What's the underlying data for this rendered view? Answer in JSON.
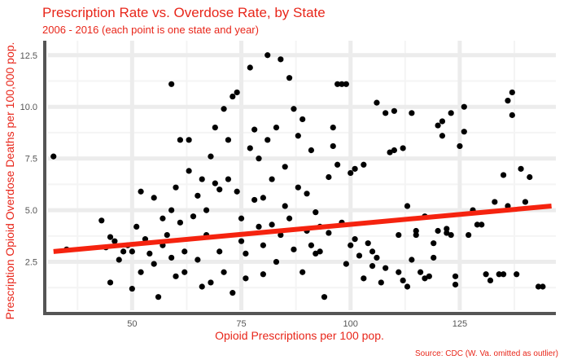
{
  "chart_data": {
    "type": "scatter",
    "title": "Prescription Rate vs. Overdose Rate, by State",
    "subtitle": "2006 - 2016 (each point is one state and year)",
    "xlabel": "Opioid Prescriptions per 100 pop.",
    "ylabel": "Prescription Opioid Overdose Deaths per 100,000 pop.",
    "caption": "Source: CDC (W. Va. omitted as outlier)",
    "xlim": [
      30,
      147
    ],
    "ylim": [
      0,
      13.2
    ],
    "x_ticks": [
      50,
      75,
      100,
      125
    ],
    "x_tick_labels": [
      "50",
      "75",
      "100",
      "125"
    ],
    "y_ticks": [
      2.5,
      5.0,
      7.5,
      10.0,
      12.5
    ],
    "y_tick_labels": [
      "2.5",
      "5.0",
      "7.5",
      "10.0",
      "12.5"
    ],
    "grid": true,
    "point_color": "#000000",
    "trend_color": "#f5230f",
    "trend_line": {
      "x": [
        32,
        146
      ],
      "y": [
        3.0,
        5.2
      ]
    },
    "points": [
      [
        32,
        7.6
      ],
      [
        35,
        3.1
      ],
      [
        43,
        4.5
      ],
      [
        44,
        3.2
      ],
      [
        45,
        3.7
      ],
      [
        46,
        3.5
      ],
      [
        47,
        2.6
      ],
      [
        48,
        3.0
      ],
      [
        45,
        1.5
      ],
      [
        49,
        3.3
      ],
      [
        50,
        3.0
      ],
      [
        50,
        1.2
      ],
      [
        51,
        4.2
      ],
      [
        52,
        5.9
      ],
      [
        52,
        2.0
      ],
      [
        53,
        3.6
      ],
      [
        54,
        2.9
      ],
      [
        55,
        5.6
      ],
      [
        55,
        2.4
      ],
      [
        56,
        0.8
      ],
      [
        57,
        3.3
      ],
      [
        57,
        4.6
      ],
      [
        58,
        3.8
      ],
      [
        59,
        11.1
      ],
      [
        59,
        5.0
      ],
      [
        59,
        2.7
      ],
      [
        60,
        6.1
      ],
      [
        60,
        1.8
      ],
      [
        61,
        8.4
      ],
      [
        61,
        4.4
      ],
      [
        62,
        3.0
      ],
      [
        62,
        2.0
      ],
      [
        63,
        8.4
      ],
      [
        63,
        6.9
      ],
      [
        64,
        4.7
      ],
      [
        65,
        5.7
      ],
      [
        65,
        2.6
      ],
      [
        66,
        1.3
      ],
      [
        66,
        6.5
      ],
      [
        67,
        3.8
      ],
      [
        67,
        5.0
      ],
      [
        68,
        7.6
      ],
      [
        68,
        1.5
      ],
      [
        69,
        9.0
      ],
      [
        69,
        6.3
      ],
      [
        70,
        6.0
      ],
      [
        70,
        3.0
      ],
      [
        71,
        2.0
      ],
      [
        71,
        9.9
      ],
      [
        72,
        6.5
      ],
      [
        72,
        8.4
      ],
      [
        73,
        10.5
      ],
      [
        73,
        1.0
      ],
      [
        74,
        10.7
      ],
      [
        74,
        5.9
      ],
      [
        75,
        3.5
      ],
      [
        75,
        4.6
      ],
      [
        76,
        2.9
      ],
      [
        76,
        1.7
      ],
      [
        77,
        11.9
      ],
      [
        77,
        8.0
      ],
      [
        78,
        8.9
      ],
      [
        78,
        5.5
      ],
      [
        79,
        7.5
      ],
      [
        79,
        4.2
      ],
      [
        80,
        3.3
      ],
      [
        80,
        5.6
      ],
      [
        80,
        1.9
      ],
      [
        81,
        12.5
      ],
      [
        81,
        8.4
      ],
      [
        82,
        6.5
      ],
      [
        82,
        4.3
      ],
      [
        83,
        2.5
      ],
      [
        83,
        9.0
      ],
      [
        84,
        12.3
      ],
      [
        84,
        3.8
      ],
      [
        85,
        5.2
      ],
      [
        85,
        7.1
      ],
      [
        86,
        11.4
      ],
      [
        86,
        4.6
      ],
      [
        87,
        9.9
      ],
      [
        87,
        3.1
      ],
      [
        88,
        8.6
      ],
      [
        88,
        6.1
      ],
      [
        89,
        9.4
      ],
      [
        89,
        2.0
      ],
      [
        90,
        5.8
      ],
      [
        90,
        4.0
      ],
      [
        91,
        7.9
      ],
      [
        91,
        3.3
      ],
      [
        92,
        2.9
      ],
      [
        92,
        4.9
      ],
      [
        93,
        4.2
      ],
      [
        93,
        3.0
      ],
      [
        94,
        0.8
      ],
      [
        95,
        6.6
      ],
      [
        95,
        3.9
      ],
      [
        96,
        9.0
      ],
      [
        96,
        8.1
      ],
      [
        97,
        11.1
      ],
      [
        97,
        7.2
      ],
      [
        98,
        11.1
      ],
      [
        98,
        4.4
      ],
      [
        99,
        11.1
      ],
      [
        99,
        2.4
      ],
      [
        100,
        6.8
      ],
      [
        100,
        3.3
      ],
      [
        101,
        3.6
      ],
      [
        101,
        7.0
      ],
      [
        102,
        2.8
      ],
      [
        103,
        1.7
      ],
      [
        103,
        7.2
      ],
      [
        104,
        3.4
      ],
      [
        105,
        3.0
      ],
      [
        105,
        2.3
      ],
      [
        106,
        10.2
      ],
      [
        106,
        2.7
      ],
      [
        107,
        1.5
      ],
      [
        108,
        9.7
      ],
      [
        108,
        2.2
      ],
      [
        109,
        7.8
      ],
      [
        110,
        9.8
      ],
      [
        110,
        7.9
      ],
      [
        111,
        2.0
      ],
      [
        111,
        3.8
      ],
      [
        112,
        1.6
      ],
      [
        112,
        8.0
      ],
      [
        113,
        1.3
      ],
      [
        113,
        5.2
      ],
      [
        114,
        2.6
      ],
      [
        114,
        9.7
      ],
      [
        115,
        3.8
      ],
      [
        115,
        4.0
      ],
      [
        116,
        2.0
      ],
      [
        117,
        4.7
      ],
      [
        117,
        1.7
      ],
      [
        118,
        1.8
      ],
      [
        119,
        2.7
      ],
      [
        119,
        3.4
      ],
      [
        120,
        9.1
      ],
      [
        120,
        4.0
      ],
      [
        121,
        9.3
      ],
      [
        121,
        8.6
      ],
      [
        122,
        3.9
      ],
      [
        122,
        4.1
      ],
      [
        123,
        9.7
      ],
      [
        123,
        3.8
      ],
      [
        124,
        1.8
      ],
      [
        124,
        1.4
      ],
      [
        125,
        8.1
      ],
      [
        126,
        10.0
      ],
      [
        126,
        8.8
      ],
      [
        127,
        3.8
      ],
      [
        128,
        5.0
      ],
      [
        129,
        4.3
      ],
      [
        130,
        4.3
      ],
      [
        131,
        1.9
      ],
      [
        132,
        1.6
      ],
      [
        133,
        5.4
      ],
      [
        134,
        1.9
      ],
      [
        135,
        6.7
      ],
      [
        135,
        1.9
      ],
      [
        136,
        5.2
      ],
      [
        136,
        10.3
      ],
      [
        137,
        10.7
      ],
      [
        137,
        9.6
      ],
      [
        138,
        1.9
      ],
      [
        139,
        7.0
      ],
      [
        140,
        5.4
      ],
      [
        141,
        6.6
      ],
      [
        143,
        1.3
      ],
      [
        144,
        1.3
      ]
    ]
  }
}
